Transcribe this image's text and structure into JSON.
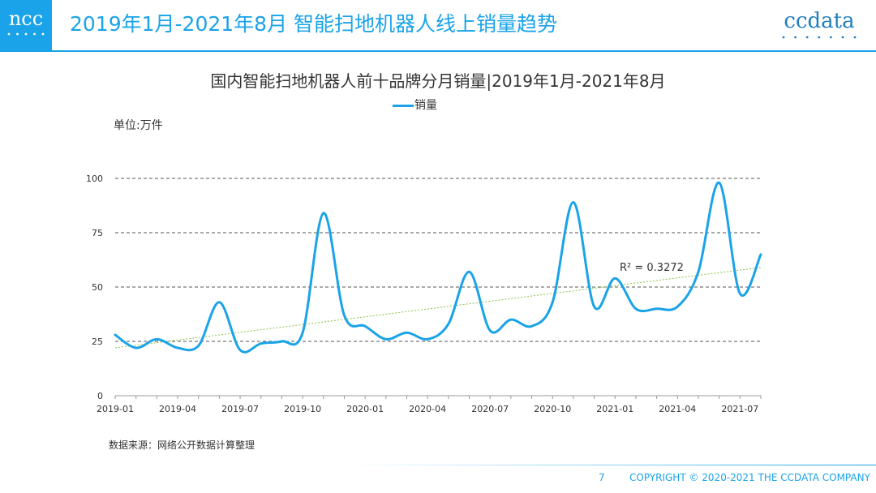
{
  "header": {
    "logo_left_text": "ncc",
    "logo_right_text": "ccdata",
    "title": "2019年1月-2021年8月 智能扫地机器人线上销量趋势",
    "accent_color": "#1aa3e8"
  },
  "chart_data": {
    "type": "line",
    "title": "国内智能扫地机器人前十品牌分月销量|2019年1月-2021年8月",
    "unit_label": "单位:万件",
    "legend_position": "top-center",
    "grid": true,
    "ylim": [
      0,
      100
    ],
    "yticks": [
      "0",
      "25",
      "50",
      "75",
      "100"
    ],
    "x_tick_labels": [
      "2019-01",
      "2019-04",
      "2019-07",
      "2019-10",
      "2020-01",
      "2020-04",
      "2020-07",
      "2020-10",
      "2021-01",
      "2021-04",
      "2021-07"
    ],
    "categories": [
      "2019-01",
      "2019-02",
      "2019-03",
      "2019-04",
      "2019-05",
      "2019-06",
      "2019-07",
      "2019-08",
      "2019-09",
      "2019-10",
      "2019-11",
      "2019-12",
      "2020-01",
      "2020-02",
      "2020-03",
      "2020-04",
      "2020-05",
      "2020-06",
      "2020-07",
      "2020-08",
      "2020-09",
      "2020-10",
      "2020-11",
      "2020-12",
      "2021-01",
      "2021-02",
      "2021-03",
      "2021-04",
      "2021-05",
      "2021-06",
      "2021-07",
      "2021-08"
    ],
    "series": [
      {
        "name": "销量",
        "color": "#1aa3e8",
        "values": [
          28,
          22,
          26,
          22,
          23,
          43,
          21,
          24,
          25,
          29,
          84,
          37,
          32,
          26,
          29,
          26,
          33,
          57,
          30,
          35,
          32,
          43,
          89,
          41,
          54,
          40,
          40,
          41,
          57,
          98,
          47,
          65
        ]
      }
    ],
    "trendline": {
      "color": "#8bc34a",
      "r2_label": "R² = 0.3272",
      "start": 22,
      "end": 59
    }
  },
  "source_text": "数据来源：网络公开数据计算整理",
  "footer": {
    "page_number": "7",
    "copyright": "COPYRIGHT © 2020-2021 THE CCDATA COMPANY"
  }
}
